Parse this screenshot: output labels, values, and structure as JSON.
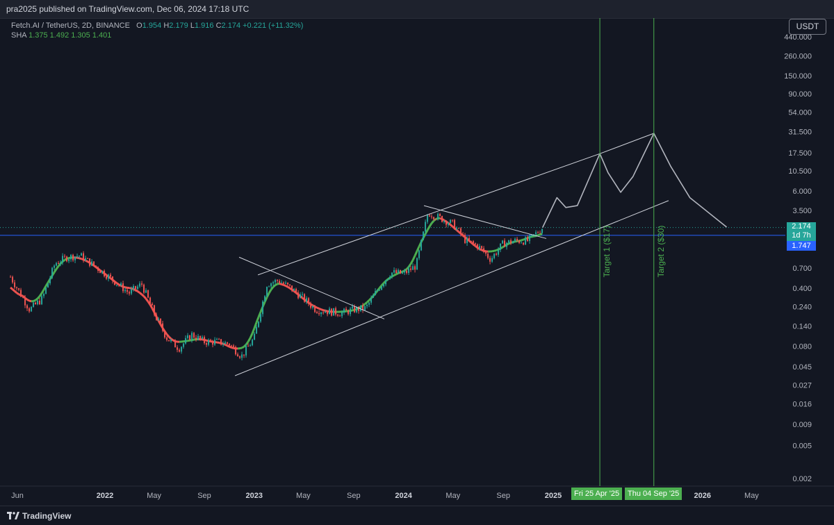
{
  "header": {
    "publisher_line": "pra2025 published on TradingView.com, Dec 06, 2024 17:18 UTC"
  },
  "legend": {
    "symbol": "Fetch.AI / TetherUS, 2D, BINANCE",
    "o_label": "O",
    "o_value": "1.954",
    "h_label": "H",
    "h_value": "2.179",
    "l_label": "L",
    "l_value": "1.916",
    "c_label": "C",
    "c_value": "2.174",
    "change": "+0.221 (+11.32%)",
    "sha_label": "SHA",
    "sha_values": "1.375  1.492  1.305  1.401"
  },
  "currency_button": "USDT",
  "price_tags": {
    "last_price": "2.174",
    "countdown": "1d 7h",
    "line_price": "1.747"
  },
  "time_tags": {
    "target1_date": "Fri 25 Apr '25",
    "target2_date": "Thu 04 Sep '25"
  },
  "annotations": {
    "target1": "Target 1 ($17)",
    "target2": "Target 2 ($30)"
  },
  "footer": {
    "brand": "TradingView"
  },
  "colors": {
    "background": "#131722",
    "bull": "#26a69a",
    "bear": "#ef5350",
    "sha_up": "#4caf50",
    "sha_down": "#ef5350",
    "horizontal_line": "#2962ff",
    "target_lines": "#4caf50",
    "trend_lines": "#d1d4dc"
  },
  "chart_data": {
    "type": "candlestick",
    "scale": "log",
    "y_axis_ticks": [
      "440.000",
      "260.000",
      "150.000",
      "90.000",
      "54.000",
      "31.500",
      "17.500",
      "10.500",
      "6.000",
      "3.500",
      "0.700",
      "0.400",
      "0.240",
      "0.140",
      "0.080",
      "0.045",
      "0.027",
      "0.016",
      "0.009",
      "0.005",
      "0.002"
    ],
    "x_axis_ticks": [
      "Jun",
      "2022",
      "May",
      "Sep",
      "2023",
      "May",
      "Sep",
      "2024",
      "May",
      "Sep",
      "2025",
      "2026",
      "May"
    ],
    "horizontal_line_price": 1.747,
    "last_price": 2.174,
    "price_path": [
      [
        "2021-05-15",
        0.55
      ],
      [
        "2021-07-01",
        0.22
      ],
      [
        "2021-08-01",
        0.3
      ],
      [
        "2021-09-01",
        0.8
      ],
      [
        "2021-10-01",
        0.95
      ],
      [
        "2021-11-01",
        1.0
      ],
      [
        "2022-01-01",
        0.6
      ],
      [
        "2022-03-01",
        0.35
      ],
      [
        "2022-04-01",
        0.45
      ],
      [
        "2022-05-01",
        0.2
      ],
      [
        "2022-06-01",
        0.1
      ],
      [
        "2022-07-01",
        0.075
      ],
      [
        "2022-08-01",
        0.11
      ],
      [
        "2022-09-01",
        0.09
      ],
      [
        "2022-10-01",
        0.09
      ],
      [
        "2022-11-01",
        0.085
      ],
      [
        "2022-12-01",
        0.06
      ],
      [
        "2023-01-01",
        0.1
      ],
      [
        "2023-02-01",
        0.45
      ],
      [
        "2023-03-01",
        0.5
      ],
      [
        "2023-04-01",
        0.4
      ],
      [
        "2023-05-01",
        0.3
      ],
      [
        "2023-06-01",
        0.22
      ],
      [
        "2023-07-01",
        0.21
      ],
      [
        "2023-08-01",
        0.2
      ],
      [
        "2023-09-01",
        0.22
      ],
      [
        "2023-10-01",
        0.23
      ],
      [
        "2023-11-01",
        0.4
      ],
      [
        "2023-12-01",
        0.62
      ],
      [
        "2024-01-01",
        0.6
      ],
      [
        "2024-02-01",
        0.75
      ],
      [
        "2024-03-01",
        3.3
      ],
      [
        "2024-04-01",
        2.8
      ],
      [
        "2024-05-01",
        2.4
      ],
      [
        "2024-06-01",
        1.5
      ],
      [
        "2024-07-01",
        1.3
      ],
      [
        "2024-08-01",
        0.9
      ],
      [
        "2024-09-01",
        1.4
      ],
      [
        "2024-10-01",
        1.5
      ],
      [
        "2024-11-01",
        1.5
      ],
      [
        "2024-12-06",
        2.174
      ]
    ],
    "projection_path": [
      [
        "2024-12-06",
        2.174
      ],
      [
        "2025-01-10",
        5.0
      ],
      [
        "2025-02-01",
        3.8
      ],
      [
        "2025-03-01",
        4.0
      ],
      [
        "2025-04-25",
        17.0
      ],
      [
        "2025-05-15",
        10.0
      ],
      [
        "2025-06-15",
        5.8
      ],
      [
        "2025-07-15",
        9.0
      ],
      [
        "2025-09-04",
        30.0
      ],
      [
        "2025-10-15",
        12.0
      ],
      [
        "2025-12-01",
        5.0
      ],
      [
        "2026-03-01",
        2.2
      ]
    ],
    "targets": [
      {
        "date": "2025-04-25",
        "label": "Target 1 ($17)",
        "price": 17
      },
      {
        "date": "2025-09-04",
        "label": "Target 2 ($30)",
        "price": 30
      }
    ]
  }
}
